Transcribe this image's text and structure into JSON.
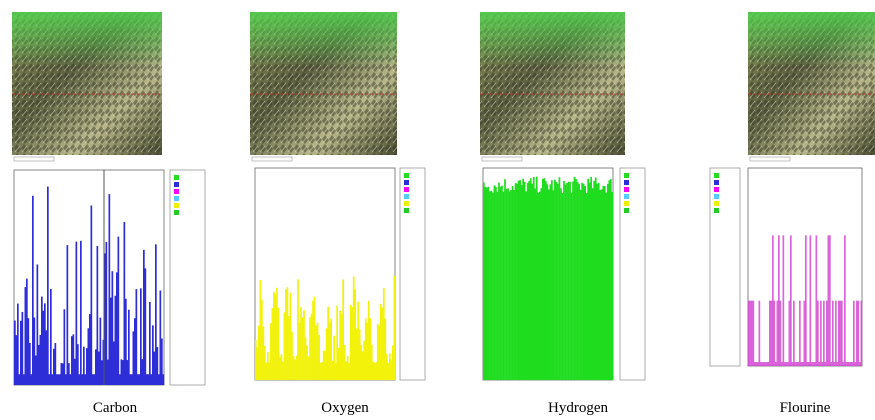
{
  "panels": [
    {
      "label": "Carbon"
    },
    {
      "label": "Oxygen"
    },
    {
      "label": "Hydrogen"
    },
    {
      "label": "Flourine"
    }
  ]
}
